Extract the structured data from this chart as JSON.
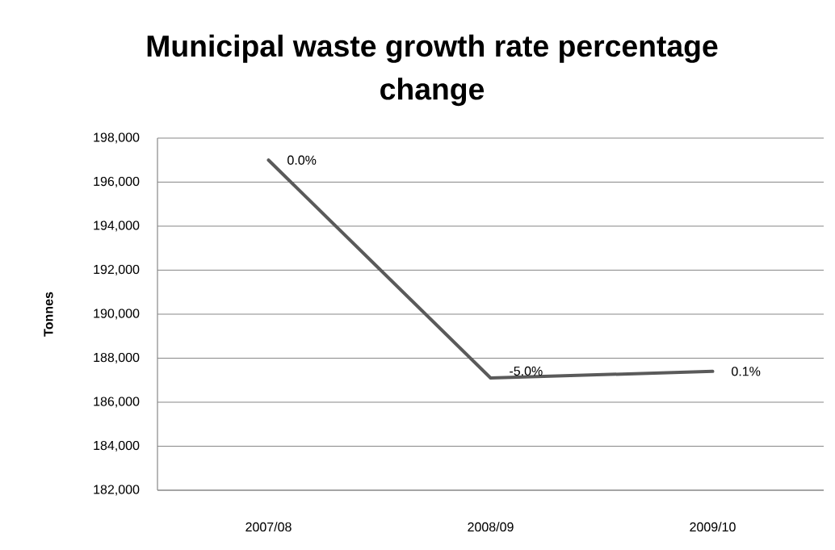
{
  "chart_data": {
    "type": "line",
    "title": "Municipal waste growth rate percentage change",
    "ylabel": "Tonnes",
    "categories": [
      "2007/08",
      "2008/09",
      "2009/10"
    ],
    "values": [
      197000,
      187100,
      187400
    ],
    "color": "#5a5a5a",
    "annotations": [
      {
        "text": "0.0%",
        "x": "2007/08",
        "y": 197000
      },
      {
        "text": "-5.0%",
        "x": "2008/09",
        "y": 187100
      },
      {
        "text": "0.1%",
        "x": "2009/10",
        "y": 187400
      }
    ],
    "ylim": [
      182000,
      198000
    ],
    "yticks": [
      {
        "value": 182000,
        "label": "182,000"
      },
      {
        "value": 184000,
        "label": "184,000"
      },
      {
        "value": 186000,
        "label": "186,000"
      },
      {
        "value": 188000,
        "label": "188,000"
      },
      {
        "value": 190000,
        "label": "190,000"
      },
      {
        "value": 192000,
        "label": "192,000"
      },
      {
        "value": 194000,
        "label": "194,000"
      },
      {
        "value": 196000,
        "label": "196,000"
      },
      {
        "value": 198000,
        "label": "198,000"
      }
    ],
    "grid": "y"
  }
}
